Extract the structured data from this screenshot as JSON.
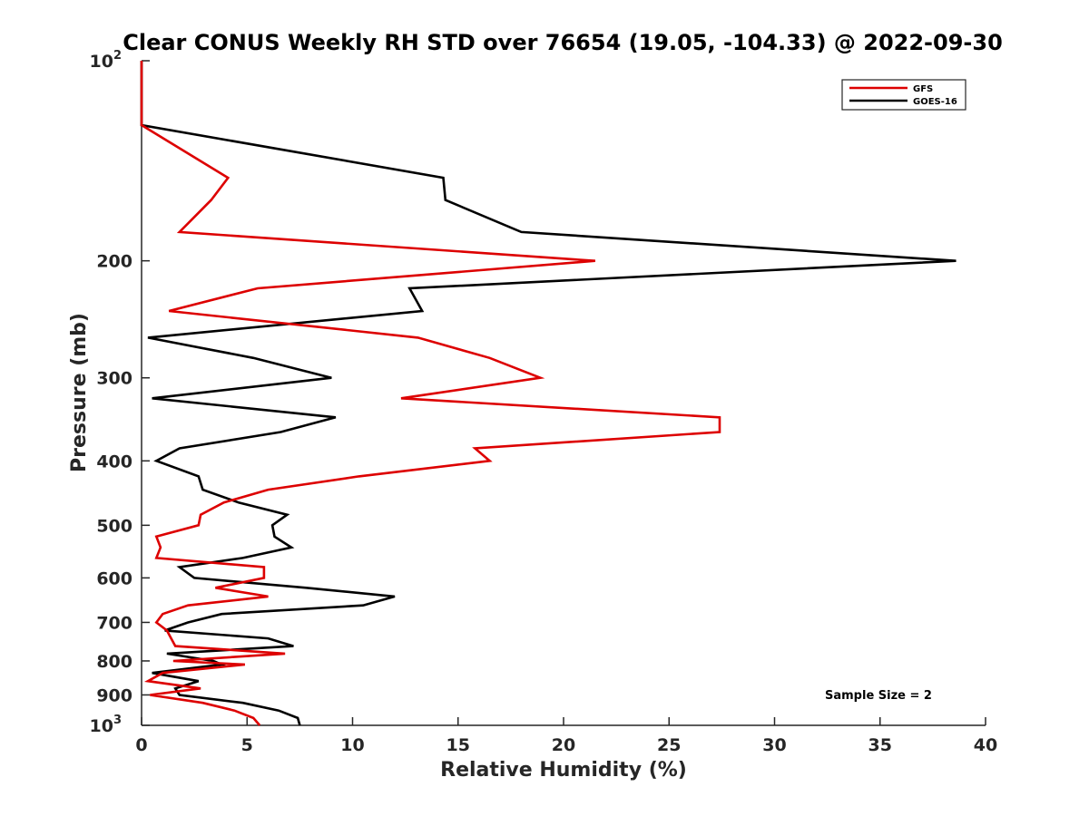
{
  "chart_data": {
    "type": "line",
    "title": "Clear CONUS Weekly RH STD over 76654 (19.05, -104.33) @ 2022-09-30",
    "xlabel": "Relative Humidity (%)",
    "ylabel": "Pressure (mb)",
    "xlim": [
      0,
      40
    ],
    "ylim": [
      100,
      1000
    ],
    "y_scale": "log",
    "y_reversed": true,
    "x_ticks": [
      0,
      5,
      10,
      15,
      20,
      25,
      30,
      35,
      40
    ],
    "y_ticks": [
      {
        "value": 100,
        "label": "10",
        "exp": "2"
      },
      {
        "value": 200,
        "label": "200"
      },
      {
        "value": 300,
        "label": "300"
      },
      {
        "value": 400,
        "label": "400"
      },
      {
        "value": 500,
        "label": "500"
      },
      {
        "value": 600,
        "label": "600"
      },
      {
        "value": 700,
        "label": "700"
      },
      {
        "value": 800,
        "label": "800"
      },
      {
        "value": 900,
        "label": "900"
      },
      {
        "value": 1000,
        "label": "10",
        "exp": "3"
      }
    ],
    "legend": {
      "position": "top-right"
    },
    "annotation": "Sample Size = 2",
    "series": [
      {
        "name": "GFS",
        "color": "#dd0000",
        "points": [
          [
            0,
            100
          ],
          [
            0,
            125
          ],
          [
            4.1,
            150
          ],
          [
            3.3,
            162
          ],
          [
            1.8,
            181
          ],
          [
            21.5,
            200
          ],
          [
            5.5,
            220
          ],
          [
            1.3,
            238
          ],
          [
            13.1,
            261
          ],
          [
            16.5,
            280
          ],
          [
            18.9,
            300
          ],
          [
            12.3,
            322
          ],
          [
            27.4,
            344
          ],
          [
            27.4,
            362
          ],
          [
            15.8,
            383
          ],
          [
            16.5,
            400
          ],
          [
            10.3,
            422
          ],
          [
            6.0,
            442
          ],
          [
            3.9,
            462
          ],
          [
            2.8,
            482
          ],
          [
            2.7,
            500
          ],
          [
            0.7,
            520
          ],
          [
            0.9,
            540
          ],
          [
            0.7,
            560
          ],
          [
            5.8,
            578
          ],
          [
            5.8,
            600
          ],
          [
            3.5,
            621
          ],
          [
            6.0,
            640
          ],
          [
            2.2,
            660
          ],
          [
            1.0,
            680
          ],
          [
            0.7,
            700
          ],
          [
            1.2,
            720
          ],
          [
            1.4,
            740
          ],
          [
            1.6,
            760
          ],
          [
            6.8,
            780
          ],
          [
            1.5,
            800
          ],
          [
            4.9,
            810
          ],
          [
            1.0,
            834
          ],
          [
            0.3,
            858
          ],
          [
            2.8,
            880
          ],
          [
            0.4,
            900
          ],
          [
            2.9,
            925
          ],
          [
            4.4,
            950
          ],
          [
            5.3,
            975
          ],
          [
            5.6,
            1000
          ]
        ]
      },
      {
        "name": "GOES-16",
        "color": "#000000",
        "points": [
          [
            0,
            100
          ],
          [
            0,
            125
          ],
          [
            14.3,
            150
          ],
          [
            14.4,
            162
          ],
          [
            18.0,
            181
          ],
          [
            38.6,
            200
          ],
          [
            12.7,
            220
          ],
          [
            13.3,
            238
          ],
          [
            0.3,
            261
          ],
          [
            5.3,
            280
          ],
          [
            9.0,
            300
          ],
          [
            0.5,
            322
          ],
          [
            9.2,
            344
          ],
          [
            6.6,
            362
          ],
          [
            1.8,
            383
          ],
          [
            0.7,
            400
          ],
          [
            2.7,
            422
          ],
          [
            2.9,
            442
          ],
          [
            4.6,
            462
          ],
          [
            6.9,
            482
          ],
          [
            6.2,
            500
          ],
          [
            6.3,
            520
          ],
          [
            7.1,
            540
          ],
          [
            4.8,
            560
          ],
          [
            1.8,
            578
          ],
          [
            2.5,
            600
          ],
          [
            7.8,
            621
          ],
          [
            12.0,
            640
          ],
          [
            10.5,
            660
          ],
          [
            3.8,
            680
          ],
          [
            2.2,
            700
          ],
          [
            1.1,
            720
          ],
          [
            6.0,
            740
          ],
          [
            7.2,
            760
          ],
          [
            1.2,
            780
          ],
          [
            3.4,
            800
          ],
          [
            3.8,
            810
          ],
          [
            0.5,
            834
          ],
          [
            2.7,
            858
          ],
          [
            1.6,
            880
          ],
          [
            1.8,
            900
          ],
          [
            4.8,
            925
          ],
          [
            6.5,
            950
          ],
          [
            7.4,
            975
          ],
          [
            7.5,
            1000
          ]
        ]
      }
    ]
  }
}
